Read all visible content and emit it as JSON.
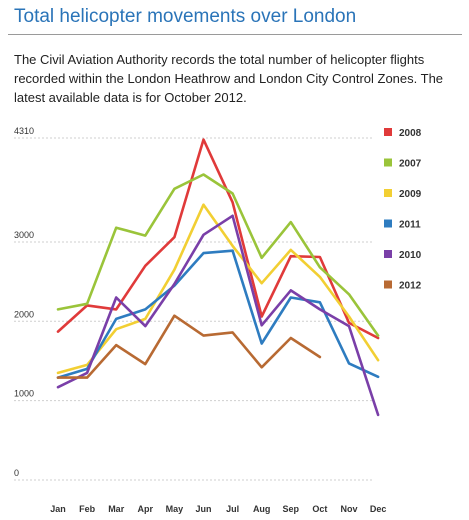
{
  "header": {
    "title": "Total helicopter movements over London",
    "description": "The Civil Aviation Authority records the total number of helicopter flights recorded within the London Heathrow and London City Control Zones. The latest available data is for October 2012."
  },
  "chart_data": {
    "type": "line",
    "categories": [
      "Jan",
      "Feb",
      "Mar",
      "Apr",
      "May",
      "Jun",
      "Jul",
      "Aug",
      "Sep",
      "Oct",
      "Nov",
      "Dec"
    ],
    "y_ticks": [
      0,
      1000,
      2000,
      3000,
      4310
    ],
    "ylim": [
      0,
      4310
    ],
    "grid": "horizontal dashed",
    "legend_position": "right",
    "series": [
      {
        "name": "2008",
        "color": "#e03a3a",
        "values": [
          1870,
          2200,
          2150,
          2700,
          3060,
          4290,
          3500,
          2060,
          2820,
          2810,
          1980,
          1790
        ]
      },
      {
        "name": "2007",
        "color": "#9ac43a",
        "values": [
          2150,
          2220,
          3180,
          3080,
          3670,
          3850,
          3610,
          2800,
          3250,
          2680,
          2340,
          1820
        ]
      },
      {
        "name": "2009",
        "color": "#f2cf33",
        "values": [
          1350,
          1450,
          1900,
          2030,
          2650,
          3470,
          2950,
          2480,
          2900,
          2560,
          2060,
          1510
        ]
      },
      {
        "name": "2011",
        "color": "#2e7cc0",
        "values": [
          1290,
          1400,
          2030,
          2150,
          2450,
          2860,
          2890,
          1720,
          2300,
          2240,
          1470,
          1300
        ]
      },
      {
        "name": "2010",
        "color": "#7a3fa8",
        "values": [
          1170,
          1350,
          2300,
          1940,
          2470,
          3090,
          3330,
          1950,
          2390,
          2150,
          1940,
          820
        ]
      },
      {
        "name": "2012",
        "color": "#b86a33",
        "values": [
          1290,
          1290,
          1700,
          1460,
          2070,
          1820,
          1860,
          1420,
          1790,
          1550,
          null,
          null
        ]
      }
    ]
  }
}
